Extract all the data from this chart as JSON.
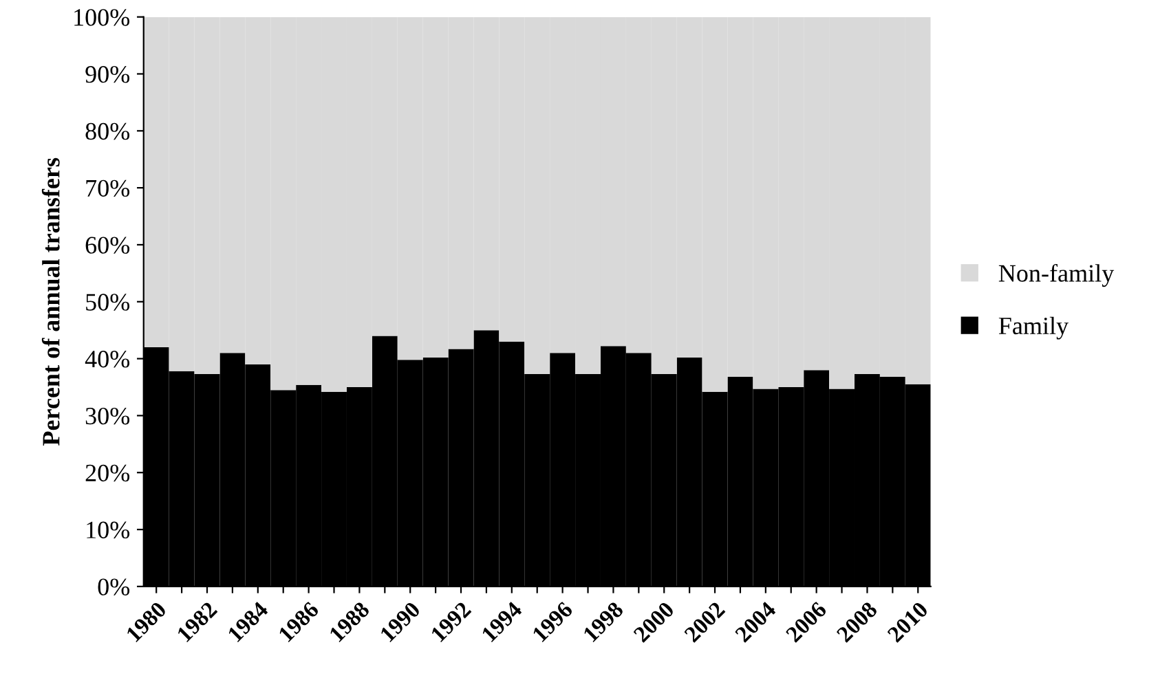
{
  "chart_data": {
    "type": "bar",
    "stacked": true,
    "ylabel": "Percent of annual transfers",
    "categories": [
      "1980",
      null,
      "1982",
      null,
      "1984",
      null,
      "1986",
      null,
      "1988",
      null,
      "1990",
      null,
      "1992",
      null,
      "1994",
      null,
      "1996",
      null,
      "1998",
      null,
      "2000",
      null,
      "2002",
      null,
      "2004",
      null,
      "2006",
      null,
      "2008",
      null,
      "2010"
    ],
    "series": [
      {
        "name": "Family",
        "color": "#000000",
        "values": [
          42,
          37.8,
          37.3,
          41,
          39,
          34.5,
          35.4,
          34.2,
          35,
          44,
          39.8,
          40.2,
          41.7,
          45,
          43,
          37.3,
          41,
          37.3,
          42.2,
          41,
          37.3,
          40.2,
          34.2,
          36.8,
          34.7,
          35,
          38,
          34.7,
          37.3,
          36.8,
          35.5
        ]
      },
      {
        "name": "Non-family",
        "color": "#d9d9d9",
        "values": [
          58,
          62.2,
          62.7,
          59,
          61,
          65.5,
          64.6,
          65.8,
          65,
          56,
          60.2,
          59.8,
          58.3,
          55,
          57,
          62.7,
          59,
          62.7,
          57.8,
          59,
          62.7,
          59.8,
          65.8,
          63.2,
          65.3,
          65,
          62,
          65.3,
          62.7,
          63.2,
          64.5
        ]
      }
    ],
    "ylim": [
      0,
      100
    ],
    "yticks": [
      {
        "value": 0,
        "label": "0%"
      },
      {
        "value": 10,
        "label": "10%"
      },
      {
        "value": 20,
        "label": "20%"
      },
      {
        "value": 30,
        "label": "30%"
      },
      {
        "value": 40,
        "label": "40%"
      },
      {
        "value": 50,
        "label": "50%"
      },
      {
        "value": 60,
        "label": "60%"
      },
      {
        "value": 70,
        "label": "70%"
      },
      {
        "value": 80,
        "label": "80%"
      },
      {
        "value": 90,
        "label": "90%"
      },
      {
        "value": 100,
        "label": "100%"
      }
    ],
    "legend": "right"
  }
}
